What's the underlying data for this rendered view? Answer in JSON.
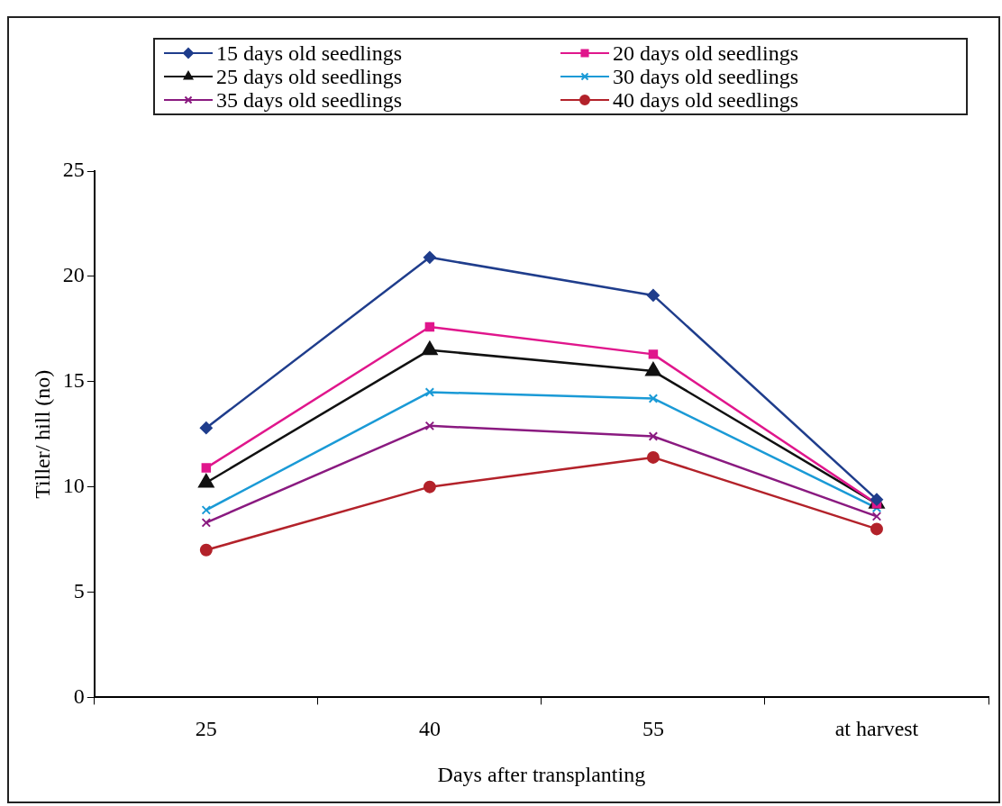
{
  "chart_data": {
    "type": "line",
    "xlabel": "Days after transplanting",
    "ylabel": "Tiller/ hill (no)",
    "categories": [
      "25",
      "40",
      "55",
      "at harvest"
    ],
    "ylim": [
      0,
      25
    ],
    "yticks": [
      0,
      5,
      10,
      15,
      20,
      25
    ],
    "grid": false,
    "legend": "top",
    "line_style": "solid",
    "series": [
      {
        "name": "15 days old seedlings",
        "color": "#1f3d8c",
        "marker": "diamond",
        "values": [
          12.8,
          20.9,
          19.1,
          9.4
        ]
      },
      {
        "name": "20 days old seedlings",
        "color": "#e0168c",
        "marker": "square",
        "values": [
          10.9,
          17.6,
          16.3,
          9.2
        ]
      },
      {
        "name": "25 days old seedlings",
        "color": "#111111",
        "marker": "triangle",
        "values": [
          10.2,
          16.5,
          15.5,
          9.2
        ]
      },
      {
        "name": "30 days old seedlings",
        "color": "#1a9ad6",
        "marker": "cross",
        "values": [
          8.9,
          14.5,
          14.2,
          9.0
        ]
      },
      {
        "name": "35 days old seedlings",
        "color": "#8a1a80",
        "marker": "cross",
        "values": [
          8.3,
          12.9,
          12.4,
          8.6
        ]
      },
      {
        "name": "40 days old seedlings",
        "color": "#b3222a",
        "marker": "circle",
        "values": [
          7.0,
          10.0,
          11.4,
          8.0
        ]
      }
    ]
  }
}
